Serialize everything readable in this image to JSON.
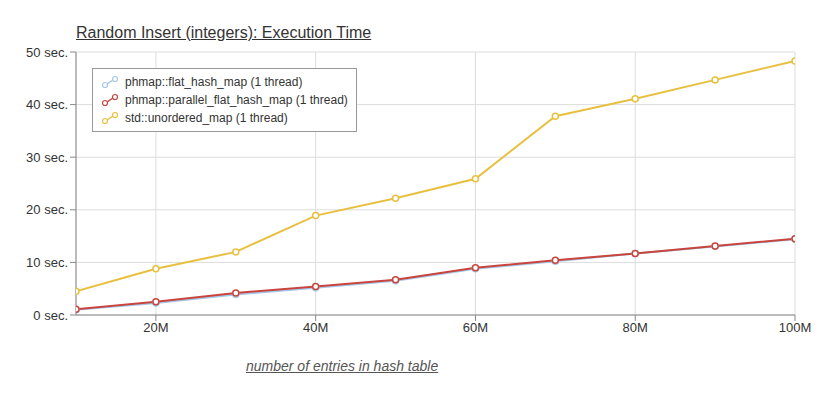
{
  "chart_data": {
    "type": "line",
    "title": "Random Insert (integers): Execution Time",
    "x_label": "number of entries in hash table",
    "x": [
      10000000,
      20000000,
      30000000,
      40000000,
      50000000,
      60000000,
      70000000,
      80000000,
      90000000,
      100000000
    ],
    "series": [
      {
        "name": "phmap::flat_hash_map (1 thread)",
        "color": "#a6c8e8",
        "marker": "circle",
        "line_style": "solid",
        "values": [
          1.0,
          2.3,
          3.9,
          5.2,
          6.5,
          8.8,
          10.2,
          11.7,
          13.0,
          14.4
        ]
      },
      {
        "name": "phmap::parallel_flat_hash_map (1 thread)",
        "color": "#c8453e",
        "marker": "circle",
        "line_style": "solid",
        "values": [
          1.1,
          2.5,
          4.2,
          5.4,
          6.7,
          9.0,
          10.4,
          11.7,
          13.1,
          14.5
        ]
      },
      {
        "name": "std::unordered_map (1 thread)",
        "color": "#e8c040",
        "marker": "circle",
        "line_style": "solid",
        "values": [
          4.5,
          8.8,
          12.0,
          18.9,
          22.2,
          25.9,
          37.8,
          41.1,
          44.7,
          48.3
        ]
      }
    ],
    "xlim": [
      10000000,
      100000000
    ],
    "xticks": [
      {
        "value": 20000000,
        "label": "20M"
      },
      {
        "value": 40000000,
        "label": "40M"
      },
      {
        "value": 60000000,
        "label": "60M"
      },
      {
        "value": 80000000,
        "label": "80M"
      },
      {
        "value": 100000000,
        "label": "100M"
      }
    ],
    "ylim": [
      0,
      50
    ],
    "yticks": [
      {
        "value": 0,
        "label": "0 sec."
      },
      {
        "value": 10,
        "label": "10 sec."
      },
      {
        "value": 20,
        "label": "20 sec."
      },
      {
        "value": 30,
        "label": "30 sec."
      },
      {
        "value": 40,
        "label": "40 sec."
      },
      {
        "value": 50,
        "label": "50 sec."
      }
    ],
    "grid": true,
    "legend": "upper left"
  }
}
